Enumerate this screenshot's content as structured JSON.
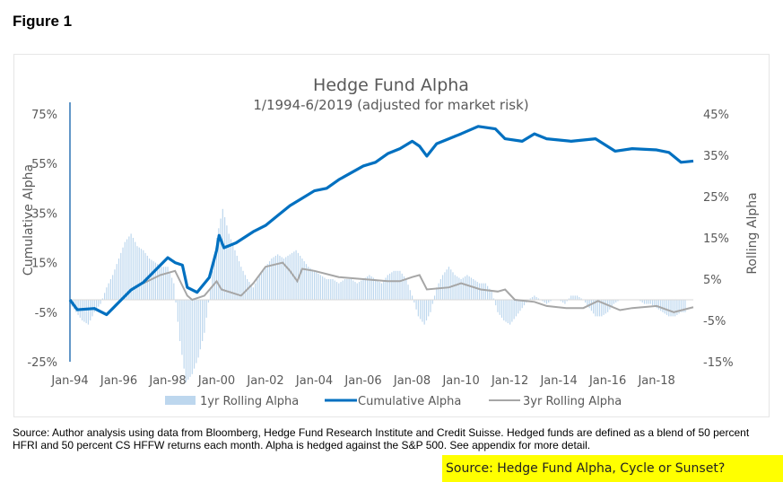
{
  "figure_label": "Figure 1",
  "source_note": "Source: Author analysis using data from Bloomberg, Hedge Fund Research Institute and Credit Suisse. Hedged funds are defined as a blend of 50 percent HFRI and 50 percent CS HFFW returns each month. Alpha is hedged against the S&P 500. See appendix for more detail.",
  "highlight": "Source: Hedge Fund Alpha, Cycle or Sunset?",
  "chart_data": {
    "type": "bar+line",
    "title": "Hedge Fund Alpha",
    "subtitle": "1/1994-6/2019 (adjusted for market risk)",
    "ylabel_left": "Cumulative Alpha",
    "ylabel_right": "Rolling Alpha",
    "ylim_left": [
      -25,
      75
    ],
    "ylim_right": [
      -15,
      45
    ],
    "yticks_left": [
      "75%",
      "55%",
      "35%",
      "15%",
      "-5%",
      "-25%"
    ],
    "yticks_left_values": [
      75,
      55,
      35,
      15,
      -5,
      -25
    ],
    "yticks_right": [
      "45%",
      "35%",
      "25%",
      "15%",
      "5%",
      "-5%",
      "-15%"
    ],
    "yticks_right_values": [
      45,
      35,
      25,
      15,
      5,
      -5,
      -15
    ],
    "xticks": [
      "Jan-94",
      "Jan-96",
      "Jan-98",
      "Jan-00",
      "Jan-02",
      "Jan-04",
      "Jan-06",
      "Jan-08",
      "Jan-10",
      "Jan-12",
      "Jan-14",
      "Jan-16",
      "Jan-18"
    ],
    "xticks_values": [
      1994,
      1996,
      1998,
      2000,
      2002,
      2004,
      2006,
      2008,
      2010,
      2012,
      2014,
      2016,
      2018
    ],
    "xlim": [
      1994,
      2019.5
    ],
    "legend": [
      "1yr Rolling Alpha",
      "Cumulative Alpha",
      "3yr Rolling Alpha"
    ],
    "legend_position": "bottom",
    "colors": {
      "bars": "#bdd7ee",
      "cumulative": "#0070c0",
      "rolling3": "#a6a6a6",
      "axis": "#2e75b6"
    },
    "series": [
      {
        "name": "1yr Rolling Alpha",
        "axis": "right",
        "x_start": 1994,
        "step": 0.25,
        "values": [
          -1,
          -3,
          -5,
          -6,
          -3,
          -1,
          3,
          6,
          10,
          14,
          16,
          13,
          12,
          10,
          9,
          8,
          8,
          4,
          -10,
          -20,
          -18,
          -14,
          -8,
          3,
          15,
          22,
          16,
          12,
          8,
          5,
          3,
          6,
          8,
          10,
          11,
          10,
          11,
          12,
          10,
          8,
          7,
          6,
          5,
          5,
          4,
          5,
          5,
          4,
          5,
          6,
          5,
          4,
          6,
          7,
          7,
          5,
          1,
          -4,
          -6,
          -3,
          3,
          6,
          8,
          6,
          5,
          6,
          5,
          4,
          4,
          2,
          -3,
          -5,
          -6,
          -4,
          -2,
          0,
          1,
          0,
          -1,
          0,
          0,
          -1,
          1,
          1,
          0,
          -2,
          -4,
          -4,
          -3,
          -1,
          0,
          0,
          0,
          0,
          -1,
          -1,
          -2,
          -3,
          -4,
          -4,
          -3,
          -3
        ]
      },
      {
        "name": "Cumulative Alpha",
        "axis": "left",
        "x": [
          1994,
          1994.3,
          1995,
          1995.5,
          1996,
          1996.5,
          1997,
          1997.5,
          1998,
          1998.3,
          1998.6,
          1998.8,
          1999.2,
          1999.7,
          2000,
          2000.1,
          2000.3,
          2000.8,
          2001.5,
          2002,
          2002.5,
          2003,
          2003.5,
          2004,
          2004.5,
          2005,
          2006,
          2006.5,
          2007,
          2007.5,
          2008,
          2008.3,
          2008.6,
          2009,
          2009.5,
          2010,
          2010.7,
          2011.4,
          2011.8,
          2012.5,
          2013,
          2013.5,
          2014.5,
          2015.5,
          2016.3,
          2017,
          2018,
          2018.5,
          2019,
          2019.5
        ],
        "values": [
          0,
          -4,
          -3.5,
          -6,
          -1,
          4,
          7,
          12,
          17,
          15,
          14,
          5,
          3,
          9,
          20,
          26,
          21,
          23,
          27.5,
          30,
          34,
          38,
          41,
          44,
          45,
          48.5,
          54,
          55.5,
          59,
          61,
          64,
          62,
          58,
          63,
          65,
          67,
          70,
          69,
          65,
          64,
          67,
          65,
          64,
          65,
          60,
          61,
          60.5,
          59.5,
          55.5,
          56
        ]
      },
      {
        "name": "3yr Rolling Alpha",
        "axis": "right",
        "x": [
          1997,
          1997.7,
          1998.3,
          1998.8,
          1999,
          1999.5,
          2000,
          2000.2,
          2001,
          2001.5,
          2002,
          2002.7,
          2003,
          2003.3,
          2003.5,
          2004,
          2005,
          2006,
          2007,
          2007.5,
          2008,
          2008.3,
          2008.6,
          2009.5,
          2010,
          2010.8,
          2011.5,
          2011.8,
          2012.2,
          2013,
          2013.5,
          2014.3,
          2015,
          2015.6,
          2016.5,
          2017,
          2018,
          2018.7,
          2019.5
        ],
        "values": [
          4,
          6,
          7,
          1,
          0,
          1,
          4.5,
          2.5,
          1,
          4,
          8,
          9,
          7,
          4.5,
          7.5,
          7,
          5.5,
          5,
          4.5,
          4.5,
          5.5,
          6,
          2.5,
          3,
          4,
          2.5,
          2,
          2.5,
          0,
          -0.5,
          -1.5,
          -2,
          -2,
          -0.3,
          -2.5,
          -2,
          -1.5,
          -3,
          -1.8
        ]
      }
    ]
  }
}
